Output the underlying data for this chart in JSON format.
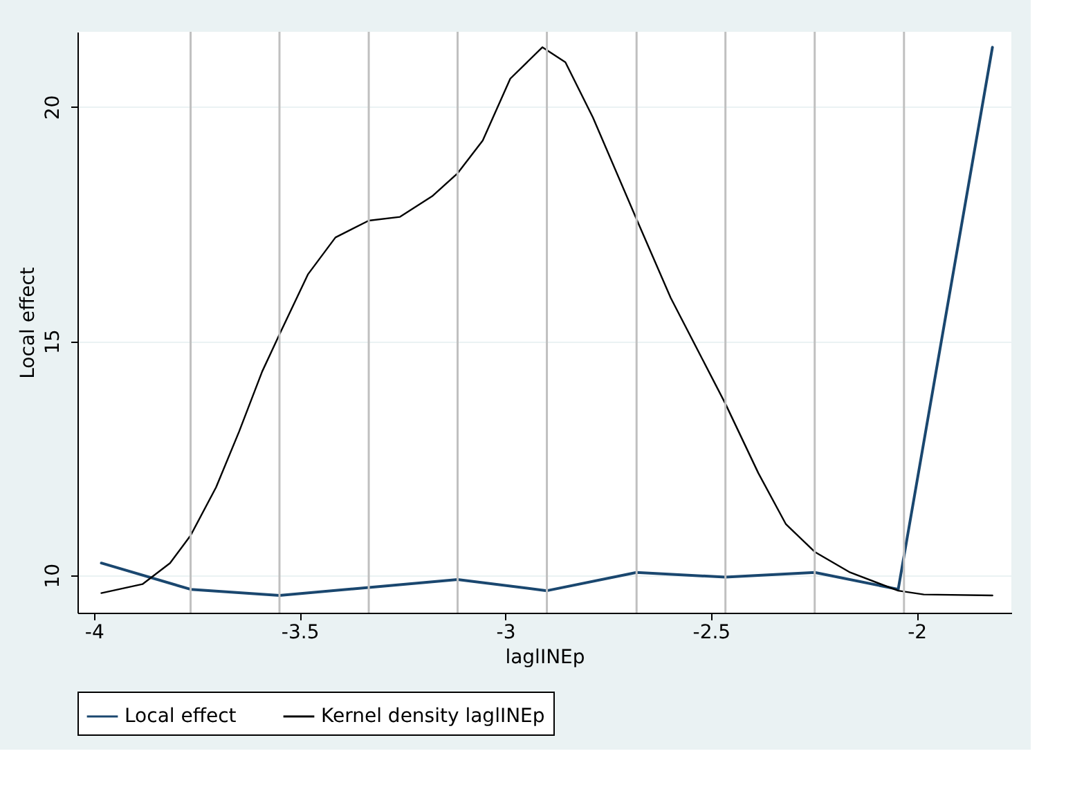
{
  "chart_data": {
    "type": "line",
    "xlabel": "laglINEp",
    "ylabel": "Local effect",
    "xlim": [
      -4.04,
      -1.77
    ],
    "xticks": [
      -4,
      -3.5,
      -3,
      -2.5,
      -2
    ],
    "ylim": [
      9.2,
      21.6
    ],
    "yticks": [
      10,
      15,
      20
    ],
    "grid": "y",
    "legend": "bottom",
    "series": [
      {
        "name": "Local effect",
        "color": "#1a476f",
        "x": [
          -3.982,
          -3.765,
          -3.549,
          -3.332,
          -3.116,
          -2.899,
          -2.681,
          -2.465,
          -2.248,
          -2.045,
          -1.816
        ],
        "values": [
          10.26,
          9.7,
          9.57,
          9.74,
          9.91,
          9.67,
          10.06,
          9.96,
          10.06,
          9.7,
          21.27
        ]
      },
      {
        "name": "Kernel density laglINEp",
        "color": "#000000",
        "x": [
          -3.982,
          -3.882,
          -3.815,
          -3.765,
          -3.703,
          -3.647,
          -3.591,
          -3.549,
          -3.48,
          -3.413,
          -3.332,
          -3.256,
          -3.178,
          -3.116,
          -3.055,
          -2.988,
          -2.91,
          -2.854,
          -2.787,
          -2.681,
          -2.598,
          -2.465,
          -2.385,
          -2.318,
          -2.248,
          -2.162,
          -2.045,
          -1.983,
          -1.816
        ],
        "values": [
          9.62,
          9.81,
          10.26,
          10.85,
          11.88,
          13.07,
          14.35,
          15.14,
          16.42,
          17.21,
          17.57,
          17.65,
          18.09,
          18.58,
          19.28,
          20.6,
          21.27,
          20.95,
          19.77,
          17.6,
          15.92,
          13.66,
          12.18,
          11.09,
          10.5,
          10.06,
          9.67,
          9.59,
          9.57
        ]
      }
    ],
    "ref_lines": [
      {
        "axis": "x",
        "value": -3.765,
        "color": "#c0c0c0"
      },
      {
        "axis": "x",
        "value": -3.549,
        "color": "#c0c0c0"
      },
      {
        "axis": "x",
        "value": -3.332,
        "color": "#c0c0c0"
      },
      {
        "axis": "x",
        "value": -3.116,
        "color": "#c0c0c0"
      },
      {
        "axis": "x",
        "value": -2.899,
        "color": "#c0c0c0"
      },
      {
        "axis": "x",
        "value": -2.681,
        "color": "#c0c0c0"
      },
      {
        "axis": "x",
        "value": -2.465,
        "color": "#c0c0c0"
      },
      {
        "axis": "x",
        "value": -2.248,
        "color": "#c0c0c0"
      },
      {
        "axis": "x",
        "value": -2.031,
        "color": "#c0c0c0"
      }
    ]
  }
}
